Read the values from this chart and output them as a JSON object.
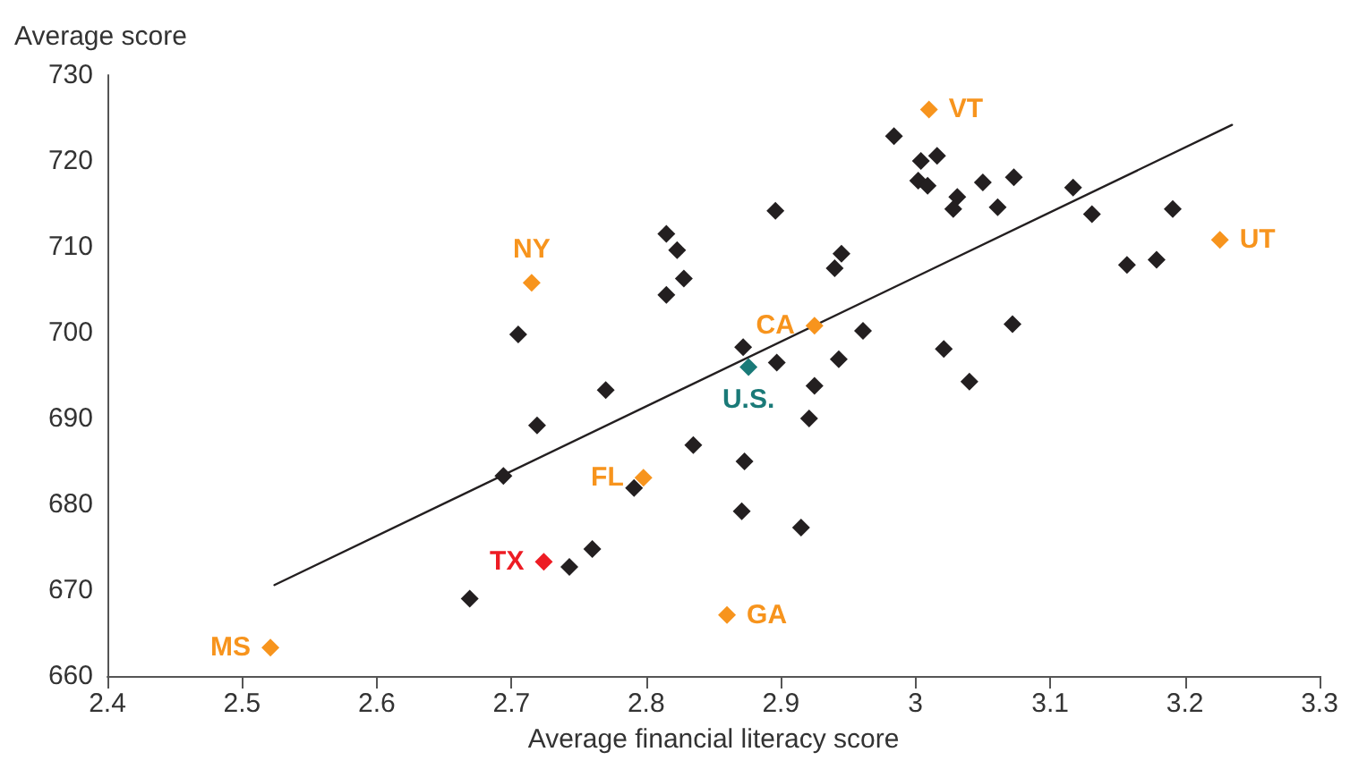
{
  "chart_data": {
    "type": "scatter",
    "xlabel": "Average financial literacy score",
    "ylabel": "Average score",
    "xlim": [
      2.4,
      3.3
    ],
    "xticks": [
      2.4,
      2.5,
      2.6,
      2.7,
      2.8,
      2.9,
      3.0,
      3.1,
      3.2,
      3.3
    ],
    "ylim": [
      660,
      730
    ],
    "yticks": [
      660,
      670,
      680,
      690,
      700,
      710,
      720,
      730
    ],
    "grid": false,
    "legend": false,
    "marker": "diamond",
    "series": [
      {
        "color": "#231f20",
        "x": [
          2.669,
          2.694,
          2.705,
          2.719,
          2.743,
          2.76,
          2.77,
          2.791,
          2.815,
          2.823,
          2.828,
          2.815,
          2.835,
          2.872,
          2.871,
          2.873,
          2.897,
          2.896,
          2.915,
          2.943,
          2.925,
          2.921,
          2.945,
          2.94,
          2.961,
          2.984,
          3.004,
          3.016,
          3.002,
          3.009,
          3.031,
          3.028,
          3.05,
          3.061,
          3.073,
          3.117,
          3.131,
          3.191,
          3.157,
          3.179,
          3.072,
          3.021,
          3.04
        ],
        "values": [
          669.0,
          683.3,
          699.8,
          689.2,
          672.7,
          674.8,
          693.3,
          681.9,
          711.5,
          709.6,
          706.3,
          704.4,
          686.9,
          698.3,
          679.2,
          685.0,
          696.5,
          714.2,
          677.3,
          696.9,
          693.8,
          690.0,
          709.2,
          707.5,
          700.2,
          722.9,
          720.0,
          720.6,
          717.7,
          717.1,
          715.8,
          714.4,
          717.5,
          714.6,
          718.1,
          716.9,
          713.8,
          714.4,
          707.9,
          708.5,
          701.0,
          698.1,
          694.3
        ]
      },
      {
        "name": "VT",
        "color": "#f7941d",
        "x": [
          3.01
        ],
        "values": [
          726.0
        ]
      },
      {
        "name": "NY",
        "color": "#f7941d",
        "x": [
          2.715
        ],
        "values": [
          705.8
        ]
      },
      {
        "name": "UT",
        "color": "#f7941d",
        "x": [
          3.226
        ],
        "values": [
          710.8
        ]
      },
      {
        "name": "CA",
        "color": "#f7941d",
        "x": [
          2.925
        ],
        "values": [
          700.8
        ]
      },
      {
        "name": "U.S.",
        "color": "#1a7a78",
        "x": [
          2.876
        ],
        "values": [
          696.0
        ]
      },
      {
        "name": "FL",
        "color": "#f7941d",
        "x": [
          2.798
        ],
        "values": [
          683.1
        ]
      },
      {
        "name": "TX",
        "color": "#ed1c24",
        "x": [
          2.724
        ],
        "values": [
          673.3
        ]
      },
      {
        "name": "GA",
        "color": "#f7941d",
        "x": [
          2.86
        ],
        "values": [
          667.1
        ]
      },
      {
        "name": "MS",
        "color": "#f7941d",
        "x": [
          2.521
        ],
        "values": [
          663.3
        ]
      },
      {
        "type": "line",
        "color": "#231f20",
        "marker": "none",
        "line_style": "solid",
        "x": [
          2.524,
          3.235
        ],
        "values": [
          670.6,
          724.2
        ]
      }
    ]
  }
}
